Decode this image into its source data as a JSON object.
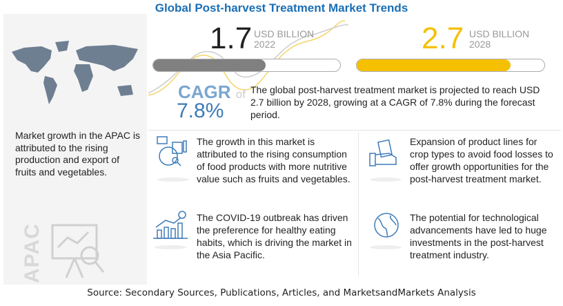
{
  "title": "Global Post-harvest Treatment Market Trends",
  "left_panel": {
    "text": "Market growth in the APAC is attributed to the rising production and export of fruits and vegetables.",
    "region_label": "APAC"
  },
  "market_2022": {
    "value": "1.7",
    "unit": "USD BILLION",
    "year": "2022",
    "fill_fraction": 0.6,
    "color": "#808080"
  },
  "market_2028": {
    "value": "2.7",
    "unit": "USD BILLION",
    "year": "2028",
    "fill_fraction": 0.82,
    "color": "#f5c000"
  },
  "cagr": {
    "label": "CAGR",
    "of": "of",
    "value": "7.8%"
  },
  "description": "The global post-harvest treatment market is projected to reach USD 2.7 billion by 2028, growing at a CAGR of 7.8% during the forecast period.",
  "items": [
    {
      "text": "The growth in this market is attributed to the rising consumption of food products with more nutritive value such as fruits and vegetables.",
      "icon": "analytics-icon"
    },
    {
      "text": "Expansion of product lines for crop types to avoid food losses to offer growth opportunities for the post-harvest treatment market.",
      "icon": "money-hand-icon"
    },
    {
      "text": "The COVID-19 outbreak has driven the preference for healthy eating habits, which is driving the market in the Asia Pacific.",
      "icon": "growth-chart-icon"
    },
    {
      "text": "The potential for technological advancements have led to huge investments in the post-harvest treatment industry.",
      "icon": "globe-icon"
    }
  ],
  "source": "Source: Secondary Sources, Publications, Articles, and MarketsandMarkets Analysis",
  "colors": {
    "accent": "#1a6fb5",
    "icon": "#3d7bb8"
  }
}
